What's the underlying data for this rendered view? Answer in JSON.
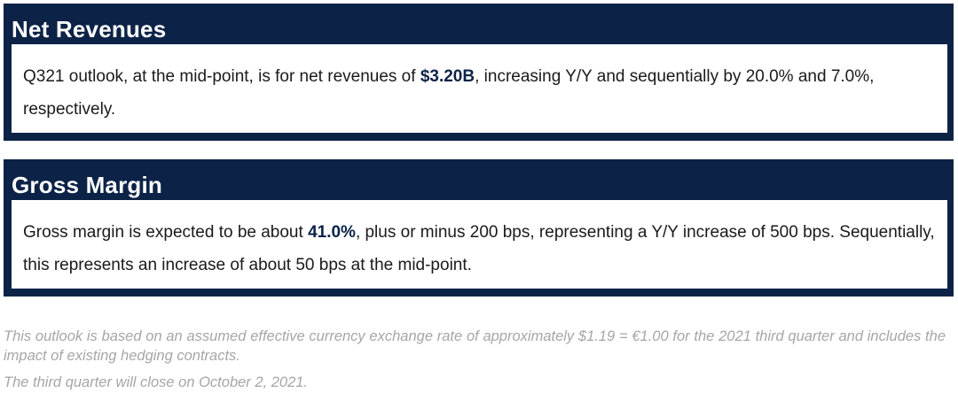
{
  "sections": [
    {
      "title": "Net Revenues",
      "text_before": "Q321 outlook, at the mid-point, is for net revenues of ",
      "highlight": "$3.20B",
      "text_after": ", increasing Y/Y and sequentially by 20.0% and 7.0%, respectively."
    },
    {
      "title": "Gross Margin",
      "text_before": "Gross margin is expected to be about ",
      "highlight": "41.0%",
      "text_after": ", plus or minus 200 bps, representing a Y/Y increase of 500 bps. Sequentially, this represents an increase of about 50 bps at the mid-point."
    }
  ],
  "footnotes": [
    "This outlook is based on an assumed effective currency exchange rate of approximately $1.19 = €1.00 for the 2021 third quarter and includes the impact of existing hedging contracts.",
    "The third quarter will close on October 2, 2021."
  ],
  "colors": {
    "panel_background": "#0c2347",
    "body_text": "#1a1a1a",
    "footnote_text": "#a6a6a6"
  }
}
